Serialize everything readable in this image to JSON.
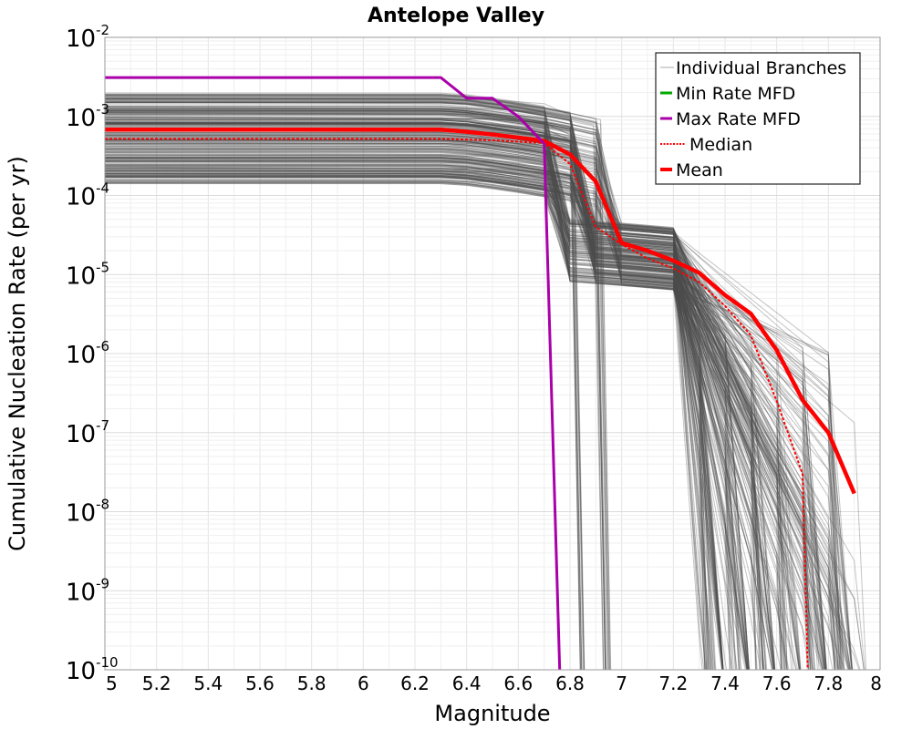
{
  "chart_data": {
    "type": "line",
    "title": "Antelope Valley",
    "xlabel": "Magnitude",
    "ylabel": "Cumulative Nucleation Rate (per yr)",
    "x_range": [
      5,
      8
    ],
    "y_range": [
      1e-10,
      0.01
    ],
    "y_scale": "log",
    "grid": true,
    "legend_position": "top-right",
    "x_ticks": [
      "5",
      "5.2",
      "5.4",
      "5.6",
      "5.8",
      "6",
      "6.2",
      "6.4",
      "6.6",
      "6.8",
      "7",
      "7.2",
      "7.4",
      "7.6",
      "7.8",
      "8"
    ],
    "y_ticks": [
      {
        "base": "10",
        "exp": "-2"
      },
      {
        "base": "10",
        "exp": "-3"
      },
      {
        "base": "10",
        "exp": "-4"
      },
      {
        "base": "10",
        "exp": "-5"
      },
      {
        "base": "10",
        "exp": "-6"
      },
      {
        "base": "10",
        "exp": "-7"
      },
      {
        "base": "10",
        "exp": "-8"
      },
      {
        "base": "10",
        "exp": "-9"
      },
      {
        "base": "10",
        "exp": "-10"
      }
    ],
    "series": [
      {
        "name": "Individual Branches",
        "color": "#555555",
        "style": "thin",
        "note": "many overlapping branch curves spanning ~1.5e-4 to ~2e-3 at low magnitude"
      },
      {
        "name": "Min Rate MFD",
        "color": "#00aa00",
        "style": "solid",
        "x": [],
        "y": []
      },
      {
        "name": "Max Rate MFD",
        "color": "#aa00aa",
        "style": "solid",
        "x": [
          5.0,
          6.3,
          6.4,
          6.5,
          6.6,
          6.7,
          6.76
        ],
        "y": [
          0.0031,
          0.0031,
          0.0017,
          0.0017,
          0.001,
          0.00045,
          1e-10
        ]
      },
      {
        "name": "Median",
        "color": "#ff0000",
        "style": "dotted",
        "x": [
          5.0,
          6.3,
          6.5,
          6.7,
          6.8,
          6.9,
          7.0,
          7.1,
          7.2,
          7.3,
          7.4,
          7.5,
          7.6,
          7.7,
          7.72
        ],
        "y": [
          0.00052,
          0.00052,
          0.0005,
          0.00046,
          0.00025,
          4e-05,
          2.4e-05,
          1.6e-05,
          1.2e-05,
          8e-06,
          4e-06,
          1.7e-06,
          2.5e-07,
          3e-08,
          1e-10
        ]
      },
      {
        "name": "Mean",
        "color": "#ff0000",
        "style": "thick",
        "x": [
          5.0,
          6.3,
          6.4,
          6.5,
          6.6,
          6.7,
          6.8,
          6.9,
          7.0,
          7.1,
          7.2,
          7.3,
          7.4,
          7.5,
          7.6,
          7.7,
          7.8,
          7.9
        ],
        "y": [
          0.00068,
          0.00068,
          0.00064,
          0.00059,
          0.00054,
          0.00049,
          0.00033,
          0.00015,
          2.5e-05,
          2e-05,
          1.5e-05,
          1.05e-05,
          5.5e-06,
          3.2e-06,
          1.1e-06,
          2.6e-07,
          1e-07,
          1.7e-08
        ]
      }
    ]
  }
}
